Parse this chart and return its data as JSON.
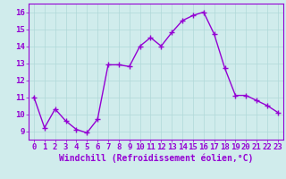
{
  "x": [
    0,
    1,
    2,
    3,
    4,
    5,
    6,
    7,
    8,
    9,
    10,
    11,
    12,
    13,
    14,
    15,
    16,
    17,
    18,
    19,
    20,
    21,
    22,
    23
  ],
  "y": [
    11.0,
    9.2,
    10.3,
    9.6,
    9.1,
    8.9,
    9.7,
    12.9,
    12.9,
    12.8,
    14.0,
    14.5,
    14.0,
    14.8,
    15.5,
    15.8,
    16.0,
    14.7,
    12.7,
    11.1,
    11.1,
    10.8,
    10.5,
    10.1
  ],
  "line_color": "#9400D3",
  "marker": "+",
  "marker_size": 4,
  "linewidth": 1.0,
  "xlabel": "Windchill (Refroidissement éolien,°C)",
  "xlabel_fontsize": 7,
  "ylim": [
    8.5,
    16.5
  ],
  "xlim": [
    -0.5,
    23.5
  ],
  "yticks": [
    9,
    10,
    11,
    12,
    13,
    14,
    15,
    16
  ],
  "xtick_labels": [
    "0",
    "1",
    "2",
    "3",
    "4",
    "5",
    "6",
    "7",
    "8",
    "9",
    "10",
    "11",
    "12",
    "13",
    "14",
    "15",
    "16",
    "17",
    "18",
    "19",
    "20",
    "21",
    "22",
    "23"
  ],
  "grid_color": "#b0d8d8",
  "bg_color": "#d0ecec",
  "line_bg": "#c8e8e8",
  "tick_color": "#9400D3",
  "tick_fontsize": 6.5,
  "tick_label_color": "#9400D3",
  "spine_color": "#9400D3"
}
